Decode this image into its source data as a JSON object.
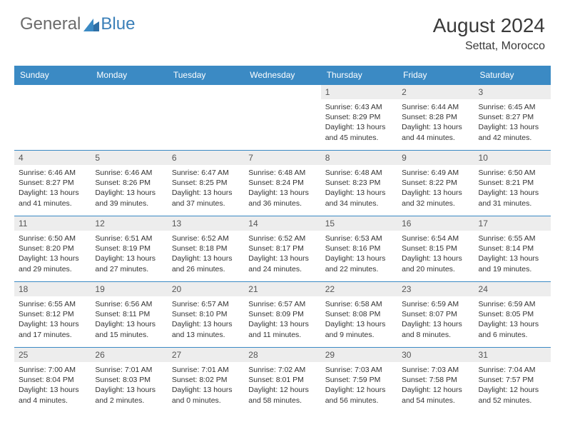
{
  "logo": {
    "general": "General",
    "blue": "Blue"
  },
  "header": {
    "title": "August 2024",
    "location": "Settat, Morocco"
  },
  "colors": {
    "header_bg": "#3b8ac4",
    "header_text": "#ffffff",
    "daynum_bg": "#ededed",
    "border": "#3b8ac4",
    "logo_gray": "#6b6b6b",
    "logo_blue": "#3a7fb8"
  },
  "daysOfWeek": [
    "Sunday",
    "Monday",
    "Tuesday",
    "Wednesday",
    "Thursday",
    "Friday",
    "Saturday"
  ],
  "weeks": [
    [
      {
        "num": "",
        "lines": []
      },
      {
        "num": "",
        "lines": []
      },
      {
        "num": "",
        "lines": []
      },
      {
        "num": "",
        "lines": []
      },
      {
        "num": "1",
        "lines": [
          "Sunrise: 6:43 AM",
          "Sunset: 8:29 PM",
          "Daylight: 13 hours and 45 minutes."
        ]
      },
      {
        "num": "2",
        "lines": [
          "Sunrise: 6:44 AM",
          "Sunset: 8:28 PM",
          "Daylight: 13 hours and 44 minutes."
        ]
      },
      {
        "num": "3",
        "lines": [
          "Sunrise: 6:45 AM",
          "Sunset: 8:27 PM",
          "Daylight: 13 hours and 42 minutes."
        ]
      }
    ],
    [
      {
        "num": "4",
        "lines": [
          "Sunrise: 6:46 AM",
          "Sunset: 8:27 PM",
          "Daylight: 13 hours and 41 minutes."
        ]
      },
      {
        "num": "5",
        "lines": [
          "Sunrise: 6:46 AM",
          "Sunset: 8:26 PM",
          "Daylight: 13 hours and 39 minutes."
        ]
      },
      {
        "num": "6",
        "lines": [
          "Sunrise: 6:47 AM",
          "Sunset: 8:25 PM",
          "Daylight: 13 hours and 37 minutes."
        ]
      },
      {
        "num": "7",
        "lines": [
          "Sunrise: 6:48 AM",
          "Sunset: 8:24 PM",
          "Daylight: 13 hours and 36 minutes."
        ]
      },
      {
        "num": "8",
        "lines": [
          "Sunrise: 6:48 AM",
          "Sunset: 8:23 PM",
          "Daylight: 13 hours and 34 minutes."
        ]
      },
      {
        "num": "9",
        "lines": [
          "Sunrise: 6:49 AM",
          "Sunset: 8:22 PM",
          "Daylight: 13 hours and 32 minutes."
        ]
      },
      {
        "num": "10",
        "lines": [
          "Sunrise: 6:50 AM",
          "Sunset: 8:21 PM",
          "Daylight: 13 hours and 31 minutes."
        ]
      }
    ],
    [
      {
        "num": "11",
        "lines": [
          "Sunrise: 6:50 AM",
          "Sunset: 8:20 PM",
          "Daylight: 13 hours and 29 minutes."
        ]
      },
      {
        "num": "12",
        "lines": [
          "Sunrise: 6:51 AM",
          "Sunset: 8:19 PM",
          "Daylight: 13 hours and 27 minutes."
        ]
      },
      {
        "num": "13",
        "lines": [
          "Sunrise: 6:52 AM",
          "Sunset: 8:18 PM",
          "Daylight: 13 hours and 26 minutes."
        ]
      },
      {
        "num": "14",
        "lines": [
          "Sunrise: 6:52 AM",
          "Sunset: 8:17 PM",
          "Daylight: 13 hours and 24 minutes."
        ]
      },
      {
        "num": "15",
        "lines": [
          "Sunrise: 6:53 AM",
          "Sunset: 8:16 PM",
          "Daylight: 13 hours and 22 minutes."
        ]
      },
      {
        "num": "16",
        "lines": [
          "Sunrise: 6:54 AM",
          "Sunset: 8:15 PM",
          "Daylight: 13 hours and 20 minutes."
        ]
      },
      {
        "num": "17",
        "lines": [
          "Sunrise: 6:55 AM",
          "Sunset: 8:14 PM",
          "Daylight: 13 hours and 19 minutes."
        ]
      }
    ],
    [
      {
        "num": "18",
        "lines": [
          "Sunrise: 6:55 AM",
          "Sunset: 8:12 PM",
          "Daylight: 13 hours and 17 minutes."
        ]
      },
      {
        "num": "19",
        "lines": [
          "Sunrise: 6:56 AM",
          "Sunset: 8:11 PM",
          "Daylight: 13 hours and 15 minutes."
        ]
      },
      {
        "num": "20",
        "lines": [
          "Sunrise: 6:57 AM",
          "Sunset: 8:10 PM",
          "Daylight: 13 hours and 13 minutes."
        ]
      },
      {
        "num": "21",
        "lines": [
          "Sunrise: 6:57 AM",
          "Sunset: 8:09 PM",
          "Daylight: 13 hours and 11 minutes."
        ]
      },
      {
        "num": "22",
        "lines": [
          "Sunrise: 6:58 AM",
          "Sunset: 8:08 PM",
          "Daylight: 13 hours and 9 minutes."
        ]
      },
      {
        "num": "23",
        "lines": [
          "Sunrise: 6:59 AM",
          "Sunset: 8:07 PM",
          "Daylight: 13 hours and 8 minutes."
        ]
      },
      {
        "num": "24",
        "lines": [
          "Sunrise: 6:59 AM",
          "Sunset: 8:05 PM",
          "Daylight: 13 hours and 6 minutes."
        ]
      }
    ],
    [
      {
        "num": "25",
        "lines": [
          "Sunrise: 7:00 AM",
          "Sunset: 8:04 PM",
          "Daylight: 13 hours and 4 minutes."
        ]
      },
      {
        "num": "26",
        "lines": [
          "Sunrise: 7:01 AM",
          "Sunset: 8:03 PM",
          "Daylight: 13 hours and 2 minutes."
        ]
      },
      {
        "num": "27",
        "lines": [
          "Sunrise: 7:01 AM",
          "Sunset: 8:02 PM",
          "Daylight: 13 hours and 0 minutes."
        ]
      },
      {
        "num": "28",
        "lines": [
          "Sunrise: 7:02 AM",
          "Sunset: 8:01 PM",
          "Daylight: 12 hours and 58 minutes."
        ]
      },
      {
        "num": "29",
        "lines": [
          "Sunrise: 7:03 AM",
          "Sunset: 7:59 PM",
          "Daylight: 12 hours and 56 minutes."
        ]
      },
      {
        "num": "30",
        "lines": [
          "Sunrise: 7:03 AM",
          "Sunset: 7:58 PM",
          "Daylight: 12 hours and 54 minutes."
        ]
      },
      {
        "num": "31",
        "lines": [
          "Sunrise: 7:04 AM",
          "Sunset: 7:57 PM",
          "Daylight: 12 hours and 52 minutes."
        ]
      }
    ]
  ]
}
